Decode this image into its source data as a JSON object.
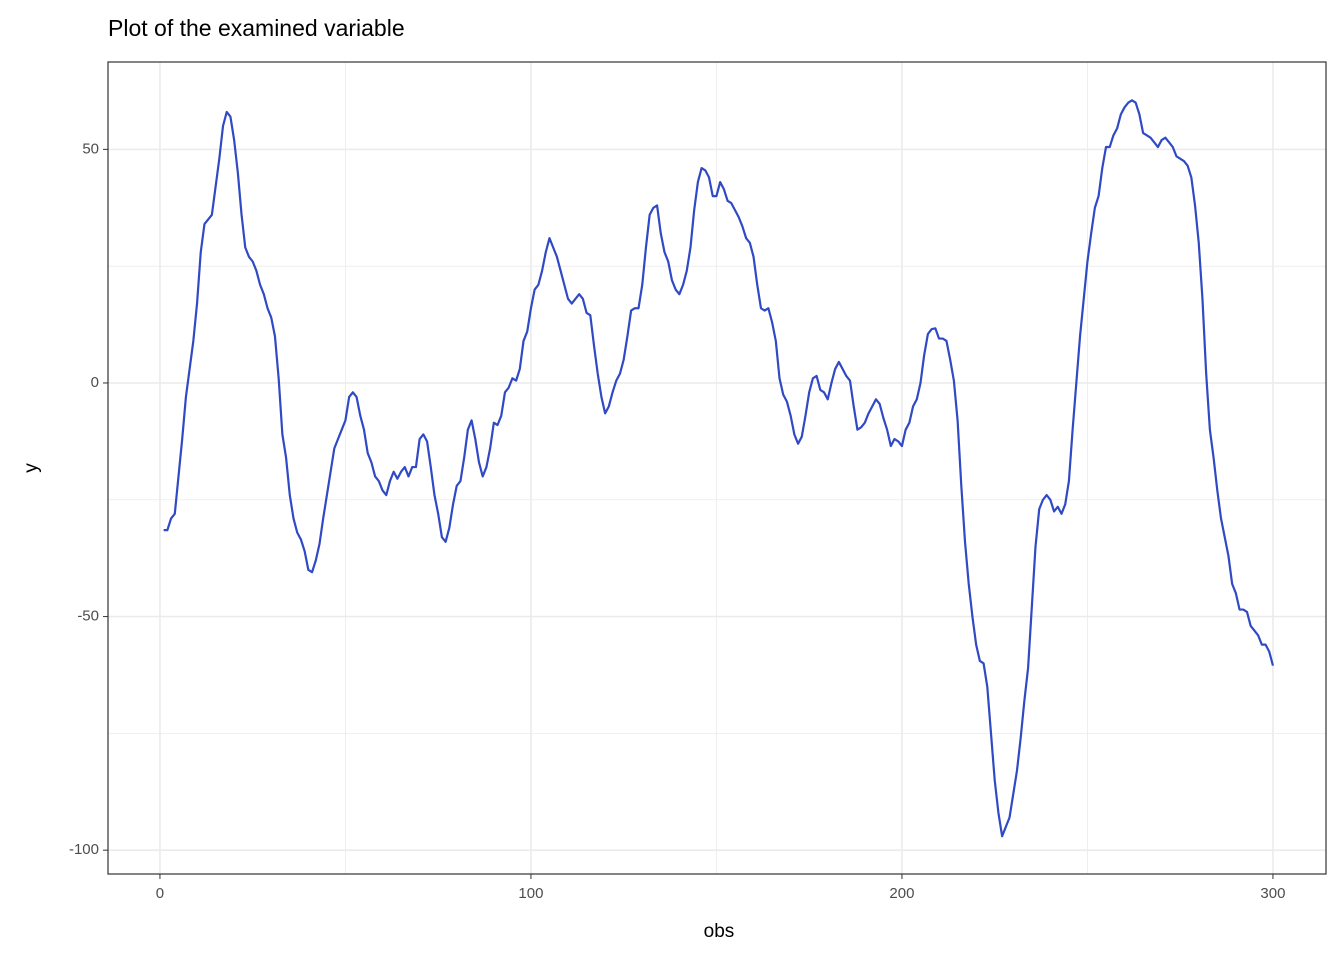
{
  "chart_data": {
    "type": "line",
    "title": "Plot of the examined variable",
    "x_label": "obs",
    "y_label": "y",
    "x": [
      1,
      2,
      3,
      4,
      5,
      6,
      7,
      8,
      9,
      10,
      11,
      12,
      13,
      14,
      15,
      16,
      17,
      18,
      19,
      20,
      21,
      22,
      23,
      24,
      25,
      26,
      27,
      28,
      29,
      30,
      31,
      32,
      33,
      34,
      35,
      36,
      37,
      38,
      39,
      40,
      41,
      42,
      43,
      44,
      45,
      46,
      47,
      48,
      49,
      50,
      51,
      52,
      53,
      54,
      55,
      56,
      57,
      58,
      59,
      60,
      61,
      62,
      63,
      64,
      65,
      66,
      67,
      68,
      69,
      70,
      71,
      72,
      73,
      74,
      75,
      76,
      77,
      78,
      79,
      80,
      81,
      82,
      83,
      84,
      85,
      86,
      87,
      88,
      89,
      90,
      91,
      92,
      93,
      94,
      95,
      96,
      97,
      98,
      99,
      100,
      101,
      102,
      103,
      104,
      105,
      106,
      107,
      108,
      109,
      110,
      111,
      112,
      113,
      114,
      115,
      116,
      117,
      118,
      119,
      120,
      121,
      122,
      123,
      124,
      125,
      126,
      127,
      128,
      129,
      130,
      131,
      132,
      133,
      134,
      135,
      136,
      137,
      138,
      139,
      140,
      141,
      142,
      143,
      144,
      145,
      146,
      147,
      148,
      149,
      150,
      151,
      152,
      153,
      154,
      155,
      156,
      157,
      158,
      159,
      160,
      161,
      162,
      163,
      164,
      165,
      166,
      167,
      168,
      169,
      170,
      171,
      172,
      173,
      174,
      175,
      176,
      177,
      178,
      179,
      180,
      181,
      182,
      183,
      184,
      185,
      186,
      187,
      188,
      189,
      190,
      191,
      192,
      193,
      194,
      195,
      196,
      197,
      198,
      199,
      200,
      201,
      202,
      203,
      204,
      205,
      206,
      207,
      208,
      209,
      210,
      211,
      212,
      213,
      214,
      215,
      216,
      217,
      218,
      219,
      220,
      221,
      222,
      223,
      224,
      225,
      226,
      227,
      228,
      229,
      230,
      231,
      232,
      233,
      234,
      235,
      236,
      237,
      238,
      239,
      240,
      241,
      242,
      243,
      244,
      245,
      246,
      247,
      248,
      249,
      250,
      251,
      252,
      253,
      254,
      255,
      256,
      257,
      258,
      259,
      260,
      261,
      262,
      263,
      264,
      265,
      266,
      267,
      268,
      269,
      270,
      271,
      272,
      273,
      274,
      275,
      276,
      277,
      278,
      279,
      280,
      281,
      282,
      283,
      284,
      285,
      286,
      287,
      288,
      289,
      290,
      291,
      292,
      293,
      294,
      295,
      296,
      297,
      298,
      299,
      300
    ],
    "series": [
      {
        "name": "y",
        "color": "#3049c4",
        "values": [
          -31.5,
          -31.5,
          -29,
          -28,
          -20,
          -12,
          -3,
          3,
          9,
          17,
          28,
          34,
          35,
          36,
          42,
          48,
          55,
          58,
          57,
          52,
          45,
          36,
          29,
          27,
          26,
          24,
          21,
          19,
          16,
          14,
          10,
          1,
          -11,
          -16,
          -24,
          -29,
          -32,
          -33.5,
          -36,
          -40,
          -40.5,
          -38,
          -34.5,
          -29,
          -24,
          -19,
          -14,
          -12,
          -10,
          -8,
          -3,
          -2,
          -3,
          -7,
          -10,
          -15,
          -17,
          -20,
          -21,
          -23,
          -24,
          -21,
          -19,
          -20.5,
          -19,
          -18,
          -20,
          -18,
          -18,
          -12,
          -11,
          -12.5,
          -18,
          -24,
          -28,
          -33,
          -34,
          -31,
          -26,
          -22,
          -21,
          -16,
          -10,
          -8,
          -12,
          -17,
          -20,
          -18,
          -14,
          -8.5,
          -9,
          -7,
          -2,
          -1,
          1,
          0.5,
          3,
          9,
          11,
          16,
          20,
          21,
          24,
          28,
          31,
          29,
          27,
          24,
          21,
          18,
          17,
          18,
          19,
          18,
          15,
          14.5,
          8,
          2,
          -3,
          -6.5,
          -5,
          -2,
          0.5,
          2,
          5,
          10,
          15.5,
          16,
          16,
          21,
          29,
          36,
          37.5,
          38,
          32,
          28,
          26,
          22,
          20,
          19,
          21,
          24,
          29,
          37,
          43,
          46,
          45.5,
          44,
          40,
          40,
          43,
          41.5,
          39,
          38.5,
          37,
          35.5,
          33.5,
          31,
          30,
          27,
          21,
          16,
          15.5,
          16,
          13,
          9,
          1,
          -2.5,
          -4,
          -7,
          -11,
          -13,
          -11.5,
          -7,
          -2,
          1,
          1.5,
          -1.5,
          -2,
          -3.5,
          0,
          3,
          4.5,
          3,
          1.5,
          0.5,
          -5,
          -10,
          -9.5,
          -8.5,
          -6.5,
          -5,
          -3.5,
          -4.5,
          -7.5,
          -10,
          -13.5,
          -12,
          -12.5,
          -13.5,
          -10,
          -8.5,
          -5,
          -3.5,
          0,
          6,
          10.5,
          11.5,
          11.7,
          9.5,
          9.5,
          9,
          5,
          0.5,
          -8,
          -22,
          -34,
          -43,
          -50,
          -56,
          -59.5,
          -60,
          -65,
          -75,
          -85,
          -92,
          -97,
          -95,
          -93,
          -88,
          -83,
          -76,
          -68,
          -61,
          -48,
          -35,
          -27,
          -25,
          -24,
          -25,
          -27.5,
          -26.5,
          -28,
          -26,
          -21,
          -10,
          0,
          10,
          18,
          26,
          32,
          37.5,
          40,
          46,
          50.5,
          50.5,
          53,
          54.5,
          57.5,
          59,
          60,
          60.5,
          60,
          57.5,
          53.5,
          53,
          52.5,
          51.5,
          50.5,
          52,
          52.5,
          51.5,
          50.5,
          48.5,
          48,
          47.5,
          46.5,
          44,
          38,
          30,
          18,
          2,
          -10,
          -16,
          -23,
          -29,
          -33,
          -37,
          -43,
          -45,
          -48.5,
          -48.5,
          -49,
          -52,
          -53,
          -54,
          -56,
          -56,
          -57.5,
          -60.5
        ]
      }
    ],
    "xlim": [
      -14,
      314.3
    ],
    "xticks": [
      0,
      100,
      200,
      300
    ],
    "minor_xticks": [
      50,
      150,
      250
    ],
    "ylim": [
      -105.1,
      68.7
    ],
    "yticks": [
      -100,
      -50,
      0,
      50
    ],
    "minor_yticks": [
      -75,
      -25,
      25
    ],
    "grid": true
  }
}
